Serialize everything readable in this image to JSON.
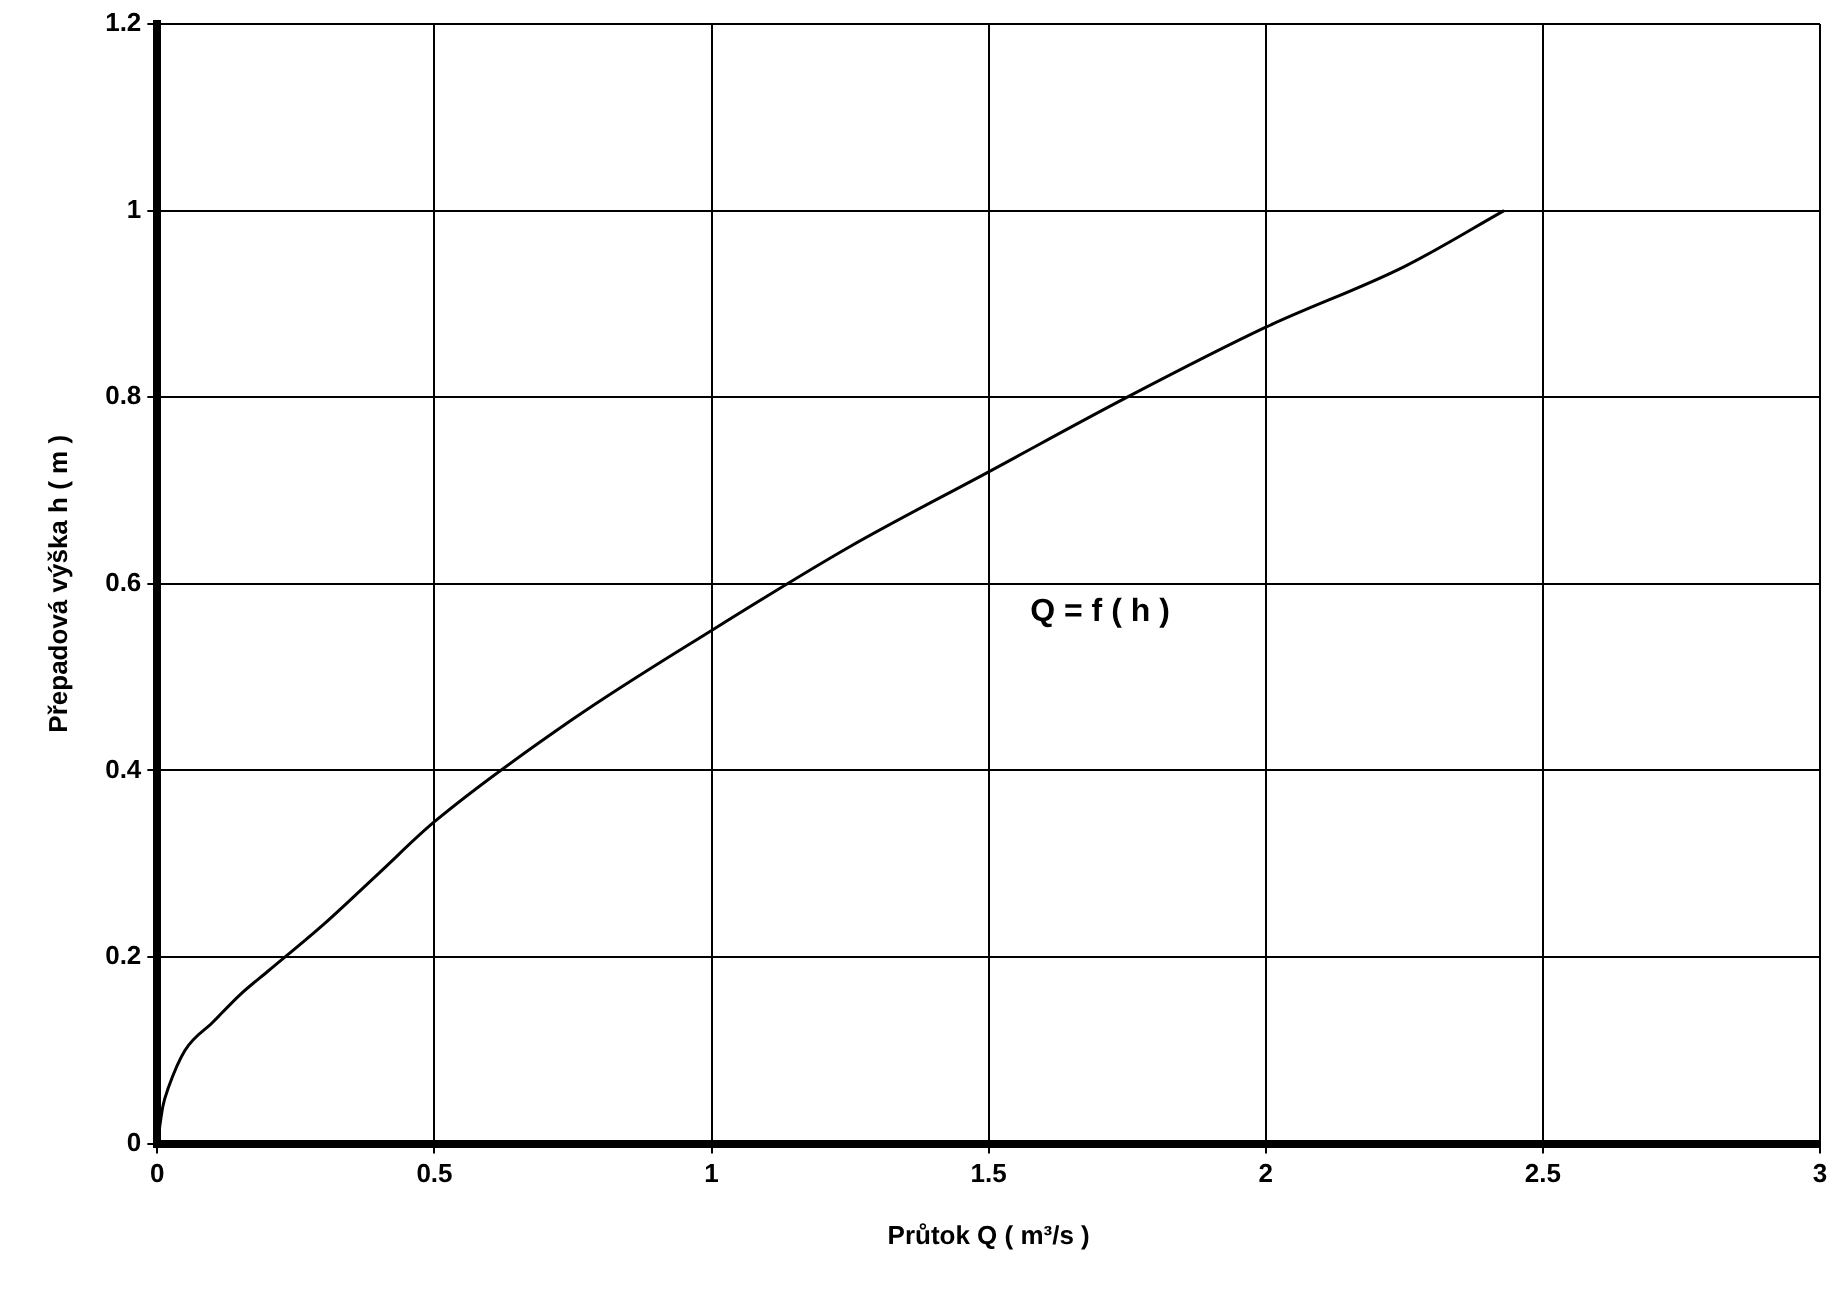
{
  "chart_data": {
    "type": "line",
    "xlabel": "Průtok Q ( m³/s )",
    "ylabel": "Přepadová výška h ( m )",
    "annotations": [
      "Q = f ( h )"
    ],
    "series": [
      {
        "color": "#000000",
        "x": [
          0,
          0.01,
          0.02,
          0.05,
          0.1,
          0.15,
          0.2,
          0.3,
          0.4,
          0.5,
          0.75,
          1,
          1.25,
          1.5,
          1.75,
          2,
          2.25,
          2.43
        ],
        "values": [
          0,
          0.04,
          0.06,
          0.1,
          0.13,
          0.16,
          0.185,
          0.235,
          0.29,
          0.345,
          0.455,
          0.55,
          0.64,
          0.72,
          0.8,
          0.875,
          0.94,
          1.0
        ]
      }
    ],
    "xlim": [
      0,
      3
    ],
    "xticks": [
      0,
      0.5,
      1,
      1.5,
      2,
      2.5,
      3
    ],
    "ylim": [
      0,
      1.2
    ],
    "yticks": [
      0,
      0.2,
      0.4,
      0.6,
      0.8,
      1,
      1.2
    ],
    "grid": true,
    "legend": false,
    "marker": "none",
    "line_style": "solid"
  }
}
